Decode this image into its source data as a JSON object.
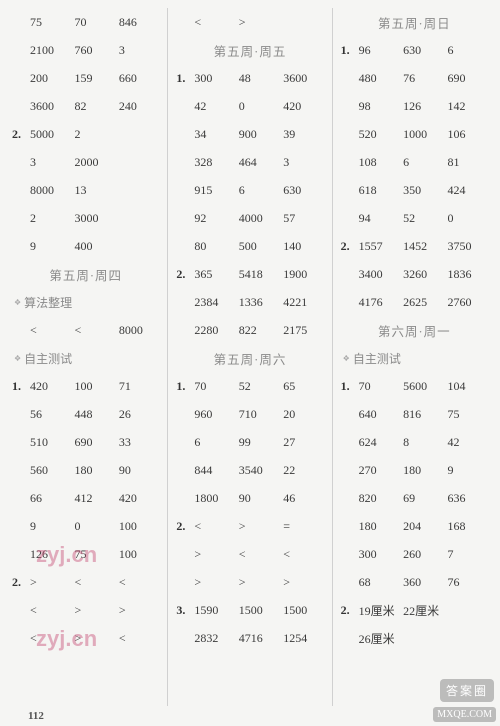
{
  "page_number": "112",
  "watermarks": [
    "zyj.cn",
    "zyj.cn"
  ],
  "badges": [
    "答案圈",
    "MXQE.COM"
  ],
  "col1": {
    "rows_a": [
      {
        "p": "",
        "a": "75",
        "b": "70",
        "c": "846"
      },
      {
        "p": "",
        "a": "2100",
        "b": "760",
        "c": "3"
      },
      {
        "p": "",
        "a": "200",
        "b": "159",
        "c": "660"
      },
      {
        "p": "",
        "a": "3600",
        "b": "82",
        "c": "240"
      },
      {
        "p": "2.",
        "a": "5000",
        "b": "2",
        "c": ""
      },
      {
        "p": "",
        "a": "3",
        "b": "2000",
        "c": ""
      },
      {
        "p": "",
        "a": "8000",
        "b": "13",
        "c": ""
      },
      {
        "p": "",
        "a": "2",
        "b": "3000",
        "c": ""
      },
      {
        "p": "",
        "a": "9",
        "b": "400",
        "c": ""
      }
    ],
    "sec1_title": "第五周·周四",
    "sub1": "算法整理",
    "rows_b": [
      {
        "p": "",
        "a": "<",
        "b": "<",
        "c": "8000"
      }
    ],
    "sub2": "自主测试",
    "rows_c": [
      {
        "p": "1.",
        "a": "420",
        "b": "100",
        "c": "71"
      },
      {
        "p": "",
        "a": "56",
        "b": "448",
        "c": "26"
      },
      {
        "p": "",
        "a": "510",
        "b": "690",
        "c": "33"
      },
      {
        "p": "",
        "a": "560",
        "b": "180",
        "c": "90"
      },
      {
        "p": "",
        "a": "66",
        "b": "412",
        "c": "420"
      },
      {
        "p": "",
        "a": "9",
        "b": "0",
        "c": "100"
      },
      {
        "p": "",
        "a": "126",
        "b": "75",
        "c": "100"
      },
      {
        "p": "2.",
        "a": ">",
        "b": "<",
        "c": "<"
      },
      {
        "p": "",
        "a": "<",
        "b": ">",
        "c": ">"
      },
      {
        "p": "",
        "a": "<",
        "b": ">",
        "c": "<"
      }
    ]
  },
  "col2": {
    "rows_a": [
      {
        "p": "",
        "a": "<",
        "b": ">",
        "c": ""
      }
    ],
    "sec1_title": "第五周·周五",
    "rows_b": [
      {
        "p": "1.",
        "a": "300",
        "b": "48",
        "c": "3600"
      },
      {
        "p": "",
        "a": "42",
        "b": "0",
        "c": "420"
      },
      {
        "p": "",
        "a": "34",
        "b": "900",
        "c": "39"
      },
      {
        "p": "",
        "a": "328",
        "b": "464",
        "c": "3"
      },
      {
        "p": "",
        "a": "915",
        "b": "6",
        "c": "630"
      },
      {
        "p": "",
        "a": "92",
        "b": "4000",
        "c": "57"
      },
      {
        "p": "",
        "a": "80",
        "b": "500",
        "c": "140"
      },
      {
        "p": "2.",
        "a": "365",
        "b": "5418",
        "c": "1900"
      },
      {
        "p": "",
        "a": "2384",
        "b": "1336",
        "c": "4221"
      },
      {
        "p": "",
        "a": "2280",
        "b": "822",
        "c": "2175"
      }
    ],
    "sec2_title": "第五周·周六",
    "rows_c": [
      {
        "p": "1.",
        "a": "70",
        "b": "52",
        "c": "65"
      },
      {
        "p": "",
        "a": "960",
        "b": "710",
        "c": "20"
      },
      {
        "p": "",
        "a": "6",
        "b": "99",
        "c": "27"
      },
      {
        "p": "",
        "a": "844",
        "b": "3540",
        "c": "22"
      },
      {
        "p": "",
        "a": "1800",
        "b": "90",
        "c": "46"
      },
      {
        "p": "2.",
        "a": "<",
        "b": ">",
        "c": "="
      },
      {
        "p": "",
        "a": ">",
        "b": "<",
        "c": "<"
      },
      {
        "p": "",
        "a": ">",
        "b": ">",
        "c": ">"
      },
      {
        "p": "3.",
        "a": "1590",
        "b": "1500",
        "c": "1500"
      },
      {
        "p": "",
        "a": "2832",
        "b": "4716",
        "c": "1254"
      }
    ]
  },
  "col3": {
    "sec1_title": "第五周·周日",
    "rows_a": [
      {
        "p": "1.",
        "a": "96",
        "b": "630",
        "c": "6"
      },
      {
        "p": "",
        "a": "480",
        "b": "76",
        "c": "690"
      },
      {
        "p": "",
        "a": "98",
        "b": "126",
        "c": "142"
      },
      {
        "p": "",
        "a": "520",
        "b": "1000",
        "c": "106"
      },
      {
        "p": "",
        "a": "108",
        "b": "6",
        "c": "81"
      },
      {
        "p": "",
        "a": "618",
        "b": "350",
        "c": "424"
      },
      {
        "p": "",
        "a": "94",
        "b": "52",
        "c": "0"
      },
      {
        "p": "2.",
        "a": "1557",
        "b": "1452",
        "c": "3750"
      },
      {
        "p": "",
        "a": "3400",
        "b": "3260",
        "c": "1836"
      },
      {
        "p": "",
        "a": "4176",
        "b": "2625",
        "c": "2760"
      }
    ],
    "sec2_title": "第六周·周一",
    "sub1": "自主测试",
    "rows_b": [
      {
        "p": "1.",
        "a": "70",
        "b": "5600",
        "c": "104"
      },
      {
        "p": "",
        "a": "640",
        "b": "816",
        "c": "75"
      },
      {
        "p": "",
        "a": "624",
        "b": "8",
        "c": "42"
      },
      {
        "p": "",
        "a": "270",
        "b": "180",
        "c": "9"
      },
      {
        "p": "",
        "a": "820",
        "b": "69",
        "c": "636"
      },
      {
        "p": "",
        "a": "180",
        "b": "204",
        "c": "168"
      },
      {
        "p": "",
        "a": "300",
        "b": "260",
        "c": "7"
      },
      {
        "p": "",
        "a": "68",
        "b": "360",
        "c": "76"
      }
    ],
    "rows_c": [
      {
        "p": "2.",
        "a": "19厘米",
        "b": "22厘米",
        "c": ""
      },
      {
        "p": "",
        "a": "26厘米",
        "b": "",
        "c": ""
      }
    ]
  }
}
